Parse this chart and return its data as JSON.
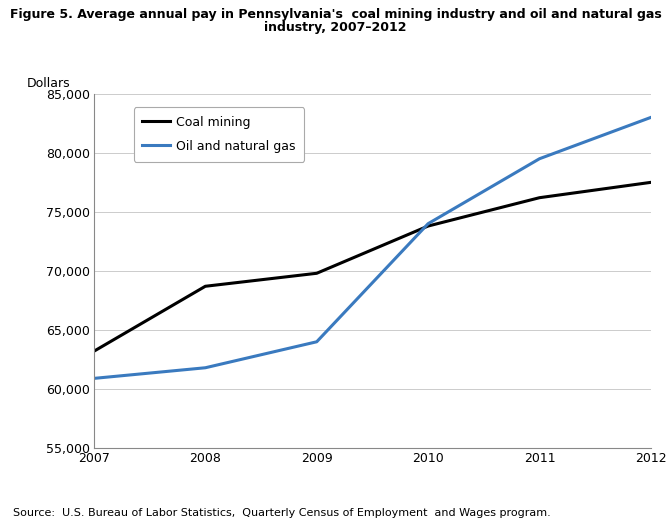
{
  "title_line1": "Figure 5. Average annual pay in Pennsylvania's  coal mining industry and oil and natural gas",
  "title_line2": "industry, 2007–2012",
  "ylabel": "Dollars",
  "source": "Source:  U.S. Bureau of Labor Statistics,  Quarterly Census of Employment  and Wages program.",
  "years": [
    2007,
    2008,
    2009,
    2010,
    2011,
    2012
  ],
  "coal_mining": [
    63200,
    68700,
    69800,
    73800,
    76200,
    77500
  ],
  "oil_gas": [
    60900,
    61800,
    64000,
    74000,
    79500,
    83000
  ],
  "coal_color": "#000000",
  "oil_color": "#3a7abf",
  "ylim": [
    55000,
    85000
  ],
  "yticks": [
    55000,
    60000,
    65000,
    70000,
    75000,
    80000,
    85000
  ],
  "legend_coal": "Coal mining",
  "legend_oil": "Oil and natural gas",
  "background_color": "#ffffff",
  "grid_color": "#cccccc",
  "line_width": 2.2,
  "title_fontsize": 9.0,
  "tick_fontsize": 9.0,
  "ylabel_fontsize": 9.0,
  "legend_fontsize": 9.0,
  "source_fontsize": 8.0
}
